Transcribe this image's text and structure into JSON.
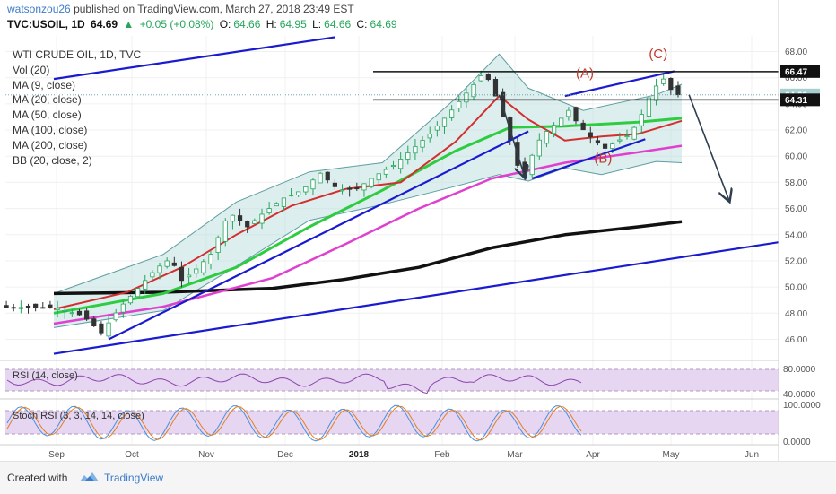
{
  "header": {
    "user": "watsonzou26",
    "published": "published on TradingView.com, March 27, 2018 23:49 EST",
    "symbol": "TVC:USOIL, 1D",
    "last": "64.69",
    "change": "+0.05 (+0.08%)",
    "open_label": "O:",
    "open": "64.66",
    "high_label": "H:",
    "high": "64.95",
    "low_label": "L:",
    "low": "64.66",
    "close_label": "C:",
    "close": "64.69"
  },
  "legend": [
    "WTI CRUDE OIL, 1D, TVC",
    "Vol (20)",
    "MA (9, close)",
    "MA (20, close)",
    "MA (50, close)",
    "MA (100, close)",
    "MA (200, close)",
    "BB (20, close, 2)"
  ],
  "footer": {
    "created": "Created with",
    "brand": "TradingView"
  },
  "colors": {
    "candle_up": "#26a65b",
    "candle_down": "#333333",
    "ma20": "#d32f2f",
    "ma50": "#2ecc40",
    "ma100": "#e040d0",
    "ma200": "#111111",
    "bb": "#5f9ea0",
    "bb_fill": "#bfe0e0",
    "trend": "#1a1ad0",
    "annotation": "#c0392b",
    "rsi_fill": "#e6d6f2",
    "rsi_line": "#8e44ad",
    "stoch_k": "#4a90d9",
    "stoch_d": "#e67e22"
  },
  "chart_data": {
    "type": "candlestick",
    "x_ticks": [
      "Sep",
      "Oct",
      "Nov",
      "Dec",
      "2018",
      "Feb",
      "Mar",
      "Apr",
      "May",
      "Jun"
    ],
    "y_ticks": [
      "68.00",
      "66.00",
      "64.00",
      "62.00",
      "60.00",
      "58.00",
      "56.00",
      "54.00",
      "52.00",
      "50.00",
      "48.00",
      "46.00"
    ],
    "y_range": [
      44.8,
      69.2
    ],
    "price_labels": [
      "66.47",
      "64.69",
      "64.31"
    ],
    "annotations": [
      "(A)",
      "(B)",
      "(C)"
    ],
    "price_path": [
      [
        0,
        48.6
      ],
      [
        1,
        47.8
      ],
      [
        1.5,
        46.5
      ],
      [
        2,
        48.4
      ],
      [
        2.6,
        50.2
      ],
      [
        3,
        51.4
      ],
      [
        3.4,
        52.2
      ],
      [
        3.7,
        50.5
      ],
      [
        4,
        51.1
      ],
      [
        4.5,
        52.5
      ],
      [
        5,
        55.7
      ],
      [
        5.5,
        54.6
      ],
      [
        6,
        55.8
      ],
      [
        6.5,
        56.8
      ],
      [
        7,
        57.4
      ],
      [
        7.5,
        58.7
      ],
      [
        8,
        57.4
      ],
      [
        8.5,
        57.5
      ],
      [
        9,
        58.5
      ],
      [
        9.5,
        59.3
      ],
      [
        10,
        60.5
      ],
      [
        10.5,
        61.7
      ],
      [
        11,
        63.2
      ],
      [
        11.4,
        64.5
      ],
      [
        11.8,
        65.8
      ],
      [
        12,
        66.5
      ],
      [
        12.3,
        64.6
      ],
      [
        12.6,
        62.2
      ],
      [
        12.9,
        59.3
      ],
      [
        13.1,
        58.4
      ],
      [
        13.4,
        60.9
      ],
      [
        13.7,
        61.9
      ],
      [
        14,
        62.6
      ],
      [
        14.3,
        63.5
      ],
      [
        14.6,
        62.3
      ],
      [
        15,
        61.2
      ],
      [
        15.3,
        60.6
      ],
      [
        15.6,
        61.1
      ],
      [
        16,
        61.7
      ],
      [
        16.3,
        63.2
      ],
      [
        16.6,
        65.1
      ],
      [
        16.9,
        65.9
      ],
      [
        17.2,
        64.7
      ]
    ],
    "series": [
      {
        "name": "MA (200, close)",
        "values": [
          [
            0,
            49.5
          ],
          [
            3,
            49.6
          ],
          [
            6,
            49.9
          ],
          [
            8,
            50.6
          ],
          [
            10,
            51.5
          ],
          [
            12,
            53.0
          ],
          [
            14,
            54.0
          ],
          [
            16,
            54.6
          ],
          [
            17.2,
            55.0
          ]
        ]
      },
      {
        "name": "MA (100, close)",
        "values": [
          [
            0,
            47.2
          ],
          [
            3,
            48.5
          ],
          [
            6,
            50.7
          ],
          [
            8,
            53.3
          ],
          [
            10,
            56.0
          ],
          [
            12,
            58.3
          ],
          [
            14,
            59.5
          ],
          [
            16,
            60.3
          ],
          [
            17.2,
            60.8
          ]
        ]
      },
      {
        "name": "MA (50, close)",
        "values": [
          [
            0,
            48.0
          ],
          [
            3,
            49.5
          ],
          [
            5,
            51.5
          ],
          [
            7,
            54.6
          ],
          [
            9,
            57.4
          ],
          [
            11,
            60.4
          ],
          [
            12.5,
            62.2
          ],
          [
            14,
            62.3
          ],
          [
            16,
            62.6
          ],
          [
            17.2,
            62.9
          ]
        ]
      },
      {
        "name": "MA (20, close)",
        "values": [
          [
            0,
            48.3
          ],
          [
            2,
            49.6
          ],
          [
            3.5,
            51.5
          ],
          [
            5,
            54.0
          ],
          [
            6.5,
            56.2
          ],
          [
            8,
            57.5
          ],
          [
            9.5,
            58.0
          ],
          [
            11,
            61.1
          ],
          [
            12.2,
            64.6
          ],
          [
            13,
            62.8
          ],
          [
            14,
            61.2
          ],
          [
            15,
            61.5
          ],
          [
            16,
            61.7
          ],
          [
            17.2,
            62.7
          ]
        ]
      }
    ],
    "bollinger": {
      "upper": [
        [
          0,
          49.5
        ],
        [
          3,
          52.5
        ],
        [
          5,
          56.5
        ],
        [
          7,
          58.8
        ],
        [
          9,
          59.5
        ],
        [
          11,
          64.4
        ],
        [
          12.2,
          67.8
        ],
        [
          13,
          65.2
        ],
        [
          14.5,
          63.5
        ],
        [
          16.5,
          64.7
        ],
        [
          17.2,
          65.5
        ]
      ],
      "lower": [
        [
          0,
          46.9
        ],
        [
          3,
          48.2
        ],
        [
          5,
          51.6
        ],
        [
          7,
          55.1
        ],
        [
          9,
          56.3
        ],
        [
          11,
          57.7
        ],
        [
          12.2,
          58.6
        ],
        [
          13,
          58.1
        ],
        [
          14,
          59.1
        ],
        [
          15,
          58.6
        ],
        [
          16.5,
          59.6
        ],
        [
          17.2,
          59.5
        ]
      ]
    },
    "trendlines": [
      {
        "from": [
          0,
          65.9
        ],
        "to": [
          7.7,
          69.1
        ]
      },
      {
        "from": [
          1.5,
          46.0
        ],
        "to": [
          13.0,
          61.9
        ]
      },
      {
        "from": [
          0,
          44.9
        ],
        "to": [
          21.2,
          54.0
        ]
      },
      {
        "from": [
          13.1,
          58.3
        ],
        "to": [
          16.2,
          61.3
        ]
      },
      {
        "from": [
          14.0,
          64.6
        ],
        "to": [
          17.0,
          66.5
        ]
      }
    ],
    "horizontal_levels": [
      66.47,
      64.31
    ],
    "arrows": [
      {
        "from": [
          12.2,
          64.7
        ],
        "to": [
          12.9,
          58.4
        ]
      },
      {
        "from": [
          17.4,
          64.7
        ],
        "to": [
          18.5,
          56.6
        ]
      }
    ],
    "rsi": {
      "title": "RSI (14, close)",
      "ticks": [
        "80.0000",
        "40.0000"
      ]
    },
    "stoch": {
      "title": "Stoch RSI (3, 3, 14, 14, close)",
      "ticks": [
        "100.0000",
        "0.0000"
      ]
    }
  }
}
